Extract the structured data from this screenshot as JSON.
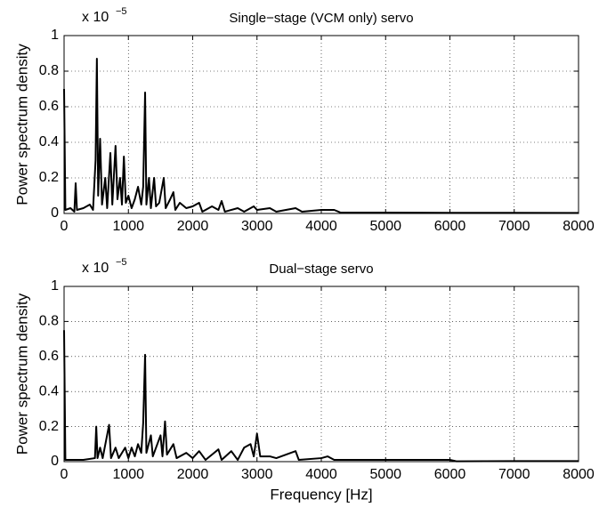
{
  "chart_data": [
    {
      "type": "line",
      "title": "Single−stage (VCM only) servo",
      "ylabel": "Power spectrum density",
      "y_multiplier": {
        "base": "x 10",
        "exponent": "−5"
      },
      "xlim": [
        0,
        8000
      ],
      "xticks": [
        0,
        1000,
        2000,
        3000,
        4000,
        5000,
        6000,
        7000,
        8000
      ],
      "ylim": [
        0,
        1
      ],
      "yticks": [
        0,
        0.2,
        0.4,
        0.6,
        0.8,
        1
      ],
      "grid": true,
      "color": "#000000",
      "x": [
        0,
        20,
        100,
        160,
        180,
        200,
        300,
        400,
        450,
        490,
        510,
        530,
        560,
        590,
        640,
        670,
        720,
        750,
        800,
        830,
        870,
        900,
        930,
        960,
        1000,
        1050,
        1100,
        1150,
        1200,
        1230,
        1260,
        1280,
        1320,
        1350,
        1400,
        1430,
        1480,
        1550,
        1580,
        1650,
        1700,
        1730,
        1800,
        1900,
        2000,
        2100,
        2150,
        2300,
        2400,
        2450,
        2500,
        2700,
        2800,
        2950,
        3000,
        3200,
        3300,
        3600,
        3700,
        4000,
        4200,
        4300,
        5000,
        6000,
        7000,
        8000
      ],
      "values": [
        0.7,
        0.02,
        0.03,
        0.01,
        0.17,
        0.02,
        0.03,
        0.05,
        0.02,
        0.3,
        0.87,
        0.1,
        0.42,
        0.05,
        0.2,
        0.03,
        0.34,
        0.05,
        0.38,
        0.08,
        0.2,
        0.05,
        0.32,
        0.06,
        0.1,
        0.03,
        0.08,
        0.15,
        0.05,
        0.15,
        0.68,
        0.05,
        0.2,
        0.03,
        0.2,
        0.04,
        0.06,
        0.2,
        0.03,
        0.08,
        0.12,
        0.02,
        0.06,
        0.03,
        0.04,
        0.06,
        0.01,
        0.04,
        0.02,
        0.07,
        0.01,
        0.03,
        0.01,
        0.04,
        0.02,
        0.03,
        0.01,
        0.03,
        0.01,
        0.02,
        0.02,
        0.005,
        0.005,
        0.004,
        0.004,
        0.003
      ]
    },
    {
      "type": "line",
      "title": "Dual−stage servo",
      "ylabel": "Power spectrum density",
      "xlabel": "Frequency [Hz]",
      "y_multiplier": {
        "base": "x 10",
        "exponent": "−5"
      },
      "xlim": [
        0,
        8000
      ],
      "xticks": [
        0,
        1000,
        2000,
        3000,
        4000,
        5000,
        6000,
        7000,
        8000
      ],
      "ylim": [
        0,
        1
      ],
      "yticks": [
        0,
        0.2,
        0.4,
        0.6,
        0.8,
        1
      ],
      "grid": true,
      "color": "#000000",
      "x": [
        0,
        20,
        300,
        480,
        500,
        520,
        560,
        600,
        700,
        730,
        800,
        850,
        950,
        1000,
        1050,
        1100,
        1150,
        1200,
        1230,
        1260,
        1280,
        1350,
        1380,
        1450,
        1500,
        1530,
        1570,
        1600,
        1700,
        1750,
        1900,
        2000,
        2100,
        2200,
        2400,
        2450,
        2600,
        2700,
        2800,
        2900,
        2950,
        3000,
        3050,
        3200,
        3300,
        3600,
        3650,
        4000,
        4100,
        4200,
        5000,
        6000,
        6100,
        7000,
        8000
      ],
      "values": [
        0.75,
        0.01,
        0.01,
        0.02,
        0.2,
        0.02,
        0.08,
        0.02,
        0.21,
        0.02,
        0.08,
        0.02,
        0.08,
        0.02,
        0.08,
        0.03,
        0.1,
        0.05,
        0.22,
        0.61,
        0.05,
        0.15,
        0.03,
        0.1,
        0.15,
        0.03,
        0.23,
        0.04,
        0.1,
        0.02,
        0.05,
        0.02,
        0.06,
        0.01,
        0.07,
        0.01,
        0.06,
        0.01,
        0.08,
        0.1,
        0.03,
        0.16,
        0.03,
        0.03,
        0.02,
        0.06,
        0.01,
        0.02,
        0.03,
        0.01,
        0.01,
        0.01,
        0.002,
        0.003,
        0.003
      ]
    }
  ]
}
